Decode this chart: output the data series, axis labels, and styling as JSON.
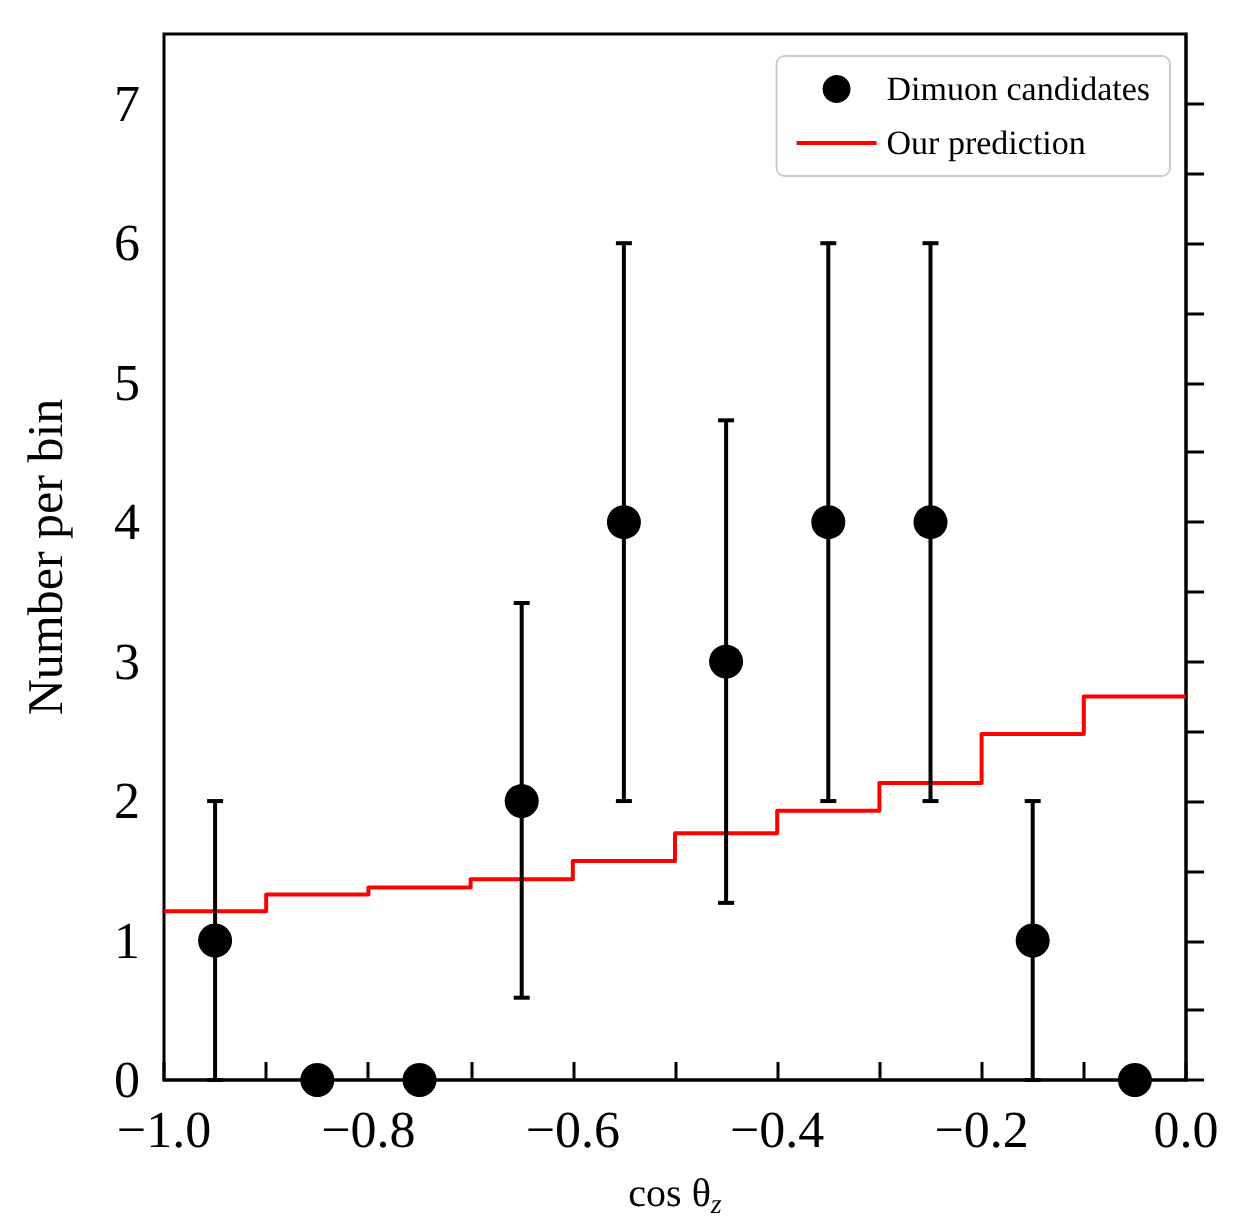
{
  "chart_data": {
    "type": "scatter",
    "xlabel": "cos θ$_{z}$",
    "ylabel": "Number per bin",
    "xlim": [
      -1.0,
      0.0
    ],
    "xticks": [
      {
        "value": -1.0,
        "label": "−1.0"
      },
      {
        "value": -0.9,
        "label": null
      },
      {
        "value": -0.8,
        "label": "−0.8"
      },
      {
        "value": -0.7,
        "label": null
      },
      {
        "value": -0.6,
        "label": "−0.6"
      },
      {
        "value": -0.5,
        "label": null
      },
      {
        "value": -0.4,
        "label": "−0.4"
      },
      {
        "value": -0.3,
        "label": null
      },
      {
        "value": -0.2,
        "label": "−0.2"
      },
      {
        "value": -0.1,
        "label": null
      },
      {
        "value": 0.0,
        "label": "0.0"
      }
    ],
    "ylim": [
      0,
      7.5
    ],
    "yticks": [
      0,
      {
        "value": 0.5,
        "label": null
      },
      1,
      {
        "value": 1.5,
        "label": null
      },
      2,
      {
        "value": 2.5,
        "label": null
      },
      3,
      {
        "value": 3.5,
        "label": null
      },
      4,
      {
        "value": 4.5,
        "label": null
      },
      5,
      {
        "value": 5.5,
        "label": null
      },
      6,
      {
        "value": 6.5,
        "label": null
      },
      7
    ],
    "legend": "top right",
    "grid": false,
    "series": [
      {
        "name": "Dimuon candidates",
        "marker": "circle",
        "color": "#000000",
        "x": [
          -0.95,
          -0.85,
          -0.75,
          -0.65,
          -0.55,
          -0.45,
          -0.35,
          -0.25,
          -0.15,
          -0.05
        ],
        "values": [
          1,
          0,
          0,
          2,
          4,
          3,
          4,
          4,
          1,
          0
        ],
        "errors": [
          [
            0,
            2
          ],
          null,
          null,
          [
            0.59,
            3.42
          ],
          [
            2,
            6
          ],
          [
            1.27,
            4.73
          ],
          [
            2,
            6
          ],
          [
            2,
            6
          ],
          [
            0,
            2
          ],
          null
        ]
      },
      {
        "name": "Our prediction",
        "type": "step",
        "color": "#ff0000",
        "x": [
          -1.0,
          -0.9,
          -0.8,
          -0.7,
          -0.6,
          -0.5,
          -0.4,
          -0.3,
          -0.2,
          -0.1,
          0.0
        ],
        "values": [
          1.21,
          1.33,
          1.38,
          1.44,
          1.57,
          1.77,
          1.93,
          2.13,
          2.48,
          2.75,
          2.75
        ]
      }
    ]
  }
}
